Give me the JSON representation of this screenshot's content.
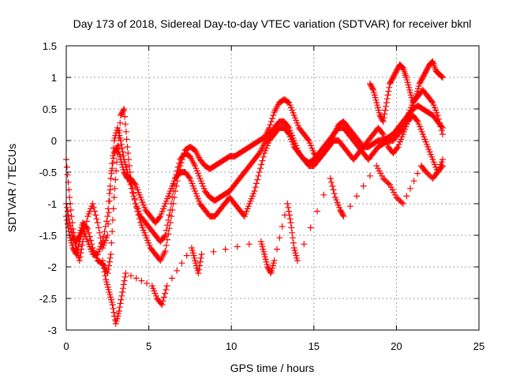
{
  "chart_data": {
    "type": "scatter",
    "title": "Day 173 of 2018, Sidereal Day-to-day VTEC variation (SDTVAR) for receiver bknl",
    "xlabel": "GPS time / hours",
    "ylabel": "SDTVAR / TECUs",
    "xlim": [
      0,
      25
    ],
    "ylim": [
      -3,
      1.5
    ],
    "grid": true,
    "marker": "+",
    "color": "#ff0000",
    "xticks": [
      0,
      5,
      10,
      15,
      20,
      25
    ],
    "xtick_labels": [
      "0",
      "5",
      "10",
      "15",
      "20",
      "25"
    ],
    "yticks": [
      -3,
      -2.5,
      -2,
      -1.5,
      -1,
      -0.5,
      0,
      0.5,
      1,
      1.5
    ],
    "ytick_labels": [
      "-3",
      "-2.5",
      "-2",
      "-1.5",
      "-1",
      "-0.5",
      "0",
      "0.5",
      "1",
      "1.5"
    ],
    "series": [
      {
        "name": "s1",
        "x": [
          0.0,
          0.2,
          0.4,
          0.6,
          0.8,
          1.0,
          1.3,
          1.6,
          1.9,
          2.2,
          2.5,
          2.7,
          2.9,
          3.1,
          3.3,
          3.5,
          3.7,
          3.9,
          4.2,
          4.5,
          4.8,
          5.1,
          5.4,
          5.7,
          6.0,
          6.3,
          6.6,
          6.9,
          7.2,
          7.5,
          7.8,
          8.1,
          8.4,
          8.7,
          9.0,
          9.3,
          9.6,
          9.9,
          10.2,
          10.5,
          10.8,
          11.1,
          11.4,
          11.7,
          12.0,
          12.3,
          12.6,
          12.9,
          13.2,
          13.5,
          13.8,
          14.1,
          14.4,
          14.7,
          15.0,
          15.3,
          15.6,
          15.9,
          16.2,
          16.5,
          16.8,
          17.1,
          17.4,
          17.7,
          18.0,
          18.3,
          18.6,
          18.9,
          19.2,
          19.5,
          19.8,
          20.1,
          20.4,
          20.7,
          21.0,
          21.3,
          21.6,
          21.9,
          22.2,
          22.5,
          22.8
        ],
        "y": [
          -1.0,
          -1.3,
          -1.55,
          -1.6,
          -1.5,
          -1.3,
          -1.4,
          -1.7,
          -1.9,
          -1.95,
          -2.1,
          -1.8,
          -0.9,
          -0.2,
          0.4,
          0.5,
          -0.1,
          -0.6,
          -1.0,
          -1.3,
          -1.5,
          -1.7,
          -1.8,
          -1.9,
          -1.75,
          -1.3,
          -0.8,
          -0.4,
          -0.15,
          -0.1,
          -0.15,
          -0.3,
          -0.4,
          -0.45,
          -0.4,
          -0.35,
          -0.3,
          -0.25,
          -0.25,
          -0.2,
          -0.15,
          -0.1,
          -0.05,
          0.0,
          0.05,
          0.2,
          0.45,
          0.6,
          0.65,
          0.6,
          0.4,
          0.2,
          0.1,
          0.0,
          -0.2,
          -0.3,
          -0.2,
          -0.1,
          0.1,
          0.25,
          0.3,
          0.2,
          0.1,
          0.0,
          -0.1,
          -0.1,
          -0.05,
          0.0,
          0.0,
          0.05,
          0.1,
          0.2,
          0.3,
          0.4,
          0.5,
          0.55,
          0.5,
          0.45,
          0.4,
          0.3,
          0.2
        ]
      },
      {
        "name": "s2",
        "x": [
          0.0,
          0.2,
          0.4,
          0.6,
          0.8,
          1.0,
          1.3,
          1.6,
          1.9,
          2.2,
          2.5,
          2.7,
          2.9,
          3.1,
          3.3,
          3.5,
          3.7,
          3.9,
          4.2,
          4.5,
          4.8,
          5.1,
          5.4,
          5.7,
          6.0,
          6.3,
          6.6,
          6.9,
          7.2,
          7.5,
          7.8,
          8.1,
          8.4,
          8.7,
          9.0,
          9.3,
          9.6,
          9.9,
          10.2,
          10.5,
          10.8,
          11.1,
          11.4,
          11.7,
          12.0,
          12.3,
          12.6,
          12.9,
          13.2,
          13.5,
          13.8,
          14.1,
          14.4,
          14.7,
          15.0,
          15.3,
          15.6,
          15.9,
          16.2,
          16.5,
          16.8,
          17.1,
          17.4,
          17.7,
          18.0,
          18.3,
          18.6,
          18.9,
          19.2,
          19.5,
          19.8,
          20.1,
          20.4,
          20.7,
          21.0,
          21.3,
          21.6,
          21.9,
          22.2,
          22.5,
          22.8
        ],
        "y": [
          -0.3,
          -0.9,
          -1.4,
          -1.7,
          -1.9,
          -1.6,
          -1.2,
          -1.0,
          -1.3,
          -1.7,
          -1.5,
          -0.6,
          0.0,
          0.2,
          0.0,
          -0.3,
          -0.5,
          -0.7,
          -1.0,
          -1.2,
          -1.3,
          -1.4,
          -1.5,
          -1.6,
          -1.5,
          -1.1,
          -0.6,
          -0.3,
          -0.2,
          -0.25,
          -0.4,
          -0.6,
          -0.8,
          -0.9,
          -0.95,
          -0.9,
          -0.85,
          -0.8,
          -0.7,
          -0.6,
          -0.5,
          -0.4,
          -0.3,
          -0.2,
          -0.05,
          0.1,
          0.2,
          0.3,
          0.3,
          0.2,
          0.0,
          -0.2,
          -0.3,
          -0.35,
          -0.3,
          -0.2,
          -0.1,
          0.0,
          0.1,
          0.2,
          0.2,
          0.1,
          0.0,
          -0.1,
          -0.2,
          -0.3,
          -0.2,
          -0.1,
          -0.05,
          0.0,
          0.0,
          0.1,
          0.2,
          0.4,
          0.6,
          0.7,
          0.8,
          0.7,
          0.6,
          0.4,
          0.1
        ]
      },
      {
        "name": "s3",
        "x": [
          0.0,
          0.2,
          0.4,
          0.6,
          0.8,
          1.0,
          1.3,
          1.6,
          1.9,
          2.2,
          2.5,
          2.7,
          2.9,
          3.1,
          3.3,
          3.5,
          3.7,
          3.9,
          4.2,
          4.5,
          4.8,
          5.1,
          5.4,
          5.7,
          6.0,
          6.3,
          6.6,
          6.9,
          7.2,
          7.5,
          7.8,
          8.1,
          8.4,
          8.7,
          9.0,
          9.3,
          9.6,
          9.9,
          10.2,
          10.5,
          10.8,
          11.1,
          11.4,
          11.7,
          12.0,
          12.3,
          12.6,
          12.9,
          13.2,
          13.5,
          13.8,
          14.1,
          14.4,
          14.7,
          15.0,
          15.3,
          15.6,
          15.9,
          16.2,
          16.5,
          16.8,
          17.1,
          17.4,
          17.7,
          18.0,
          18.3,
          18.6,
          18.9,
          19.2,
          19.5,
          19.8,
          20.1,
          20.4,
          20.7,
          21.0,
          21.3,
          21.6,
          21.9,
          22.2,
          22.5,
          22.8
        ],
        "y": [
          -1.2,
          -1.5,
          -1.7,
          -1.8,
          -1.6,
          -1.4,
          -1.6,
          -1.8,
          -1.8,
          -1.6,
          -1.2,
          -0.6,
          -0.2,
          -0.1,
          -0.3,
          -0.5,
          -0.6,
          -0.6,
          -0.7,
          -0.9,
          -1.1,
          -1.2,
          -1.3,
          -1.2,
          -1.0,
          -0.8,
          -0.6,
          -0.5,
          -0.5,
          -0.6,
          -0.8,
          -1.0,
          -1.1,
          -1.2,
          -1.2,
          -1.1,
          -1.0,
          -0.9,
          -1.0,
          -1.1,
          -1.2,
          -1.0,
          -0.8,
          -0.5,
          -0.2,
          0.0,
          0.1,
          0.2,
          0.2,
          0.1,
          -0.1,
          -0.2,
          -0.3,
          -0.4,
          -0.4,
          -0.3,
          -0.2,
          -0.1,
          0.0,
          0.0,
          -0.1,
          -0.2,
          -0.3,
          -0.2,
          -0.1,
          0.0,
          0.1,
          0.2,
          0.1,
          -0.1,
          -0.2,
          -0.1,
          0.1,
          0.3,
          0.4,
          0.3,
          0.1,
          -0.1,
          -0.3,
          -0.5,
          -0.4
        ]
      },
      {
        "name": "s4",
        "x": [
          2.2,
          2.4,
          2.6,
          2.8,
          3.0,
          3.2,
          3.4,
          3.6,
          5.2,
          5.5,
          5.8,
          6.1,
          7.6,
          7.8,
          8.0,
          8.2,
          11.8,
          12.0,
          12.2,
          12.4,
          12.6,
          13.4,
          13.6,
          13.8,
          14.0,
          16.0,
          16.3,
          16.6,
          16.8,
          18.8,
          19.2,
          19.6,
          20.0,
          20.4,
          21.5,
          21.8,
          22.2,
          22.5,
          22.8
        ],
        "y": [
          -1.9,
          -2.2,
          -2.4,
          -2.6,
          -2.9,
          -2.7,
          -2.4,
          -2.1,
          -2.3,
          -2.5,
          -2.6,
          -2.3,
          -1.7,
          -1.9,
          -2.1,
          -1.8,
          -1.6,
          -1.8,
          -2.0,
          -2.1,
          -1.9,
          -1.0,
          -1.3,
          -1.7,
          -1.9,
          -0.6,
          -0.9,
          -1.1,
          -1.2,
          -0.4,
          -0.6,
          -0.7,
          -0.9,
          -1.0,
          -0.4,
          -0.5,
          -0.6,
          -0.5,
          -0.3
        ]
      },
      {
        "name": "s5",
        "x": [
          18.4,
          18.6,
          18.8,
          19.0,
          19.2,
          19.4,
          19.6,
          19.8,
          20.0,
          20.2,
          20.4,
          20.6,
          20.8,
          21.0,
          21.2,
          21.4,
          21.6,
          21.8,
          22.0,
          22.2,
          22.4,
          22.6,
          22.8
        ],
        "y": [
          0.9,
          0.8,
          0.6,
          0.4,
          0.3,
          0.6,
          0.9,
          1.0,
          1.1,
          1.2,
          1.15,
          1.0,
          0.8,
          0.6,
          0.7,
          0.9,
          1.0,
          1.1,
          1.2,
          1.25,
          1.1,
          1.05,
          1.0
        ]
      }
    ]
  }
}
